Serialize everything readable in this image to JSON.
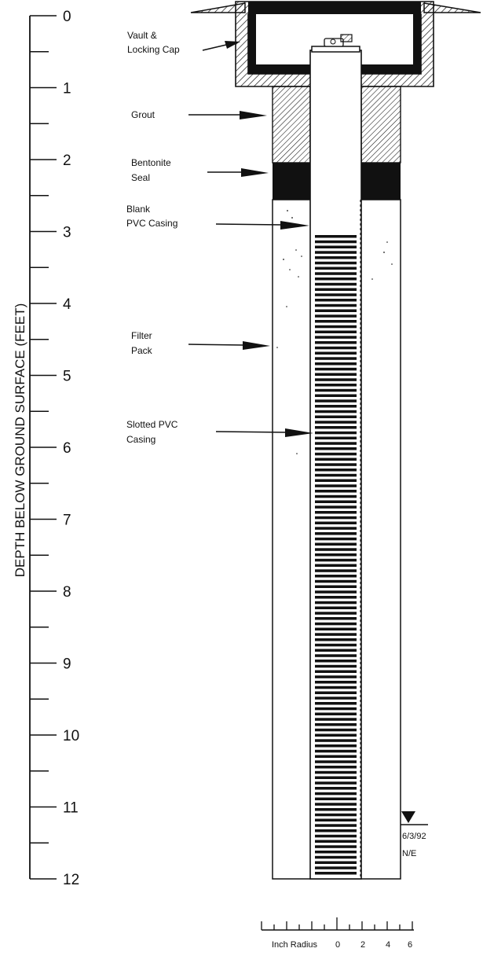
{
  "depth_axis": {
    "title": "DEPTH BELOW GROUND SURFACE  (FEET)",
    "tick_labels": [
      "0",
      "1",
      "2",
      "3",
      "4",
      "5",
      "6",
      "7",
      "8",
      "9",
      "10",
      "11",
      "12"
    ]
  },
  "callouts": [
    {
      "id": "vault",
      "lines": [
        "Vault &",
        "Locking Cap"
      ]
    },
    {
      "id": "grout",
      "lines": [
        "Grout"
      ]
    },
    {
      "id": "bentonite",
      "lines": [
        "Bentonite",
        "Seal"
      ]
    },
    {
      "id": "blank-casing",
      "lines": [
        "Blank",
        "PVC Casing"
      ]
    },
    {
      "id": "filter-pack",
      "lines": [
        "Filter",
        "Pack"
      ]
    },
    {
      "id": "slotted-casing",
      "lines": [
        "Slotted PVC",
        "Casing"
      ]
    }
  ],
  "water_level": {
    "date": "6/3/92",
    "note": "N/E"
  },
  "radius_scale": {
    "label": "Inch Radius",
    "tick_labels": [
      "0",
      "2",
      "4",
      "6"
    ]
  },
  "colors": {
    "ink": "#111111",
    "background": "#ffffff"
  }
}
